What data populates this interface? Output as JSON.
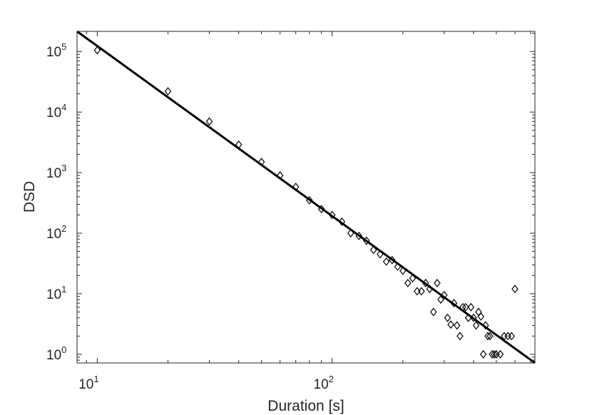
{
  "chart_data": {
    "type": "scatter",
    "title": "",
    "xlabel": "Duration [s]",
    "ylabel": "DSD",
    "xscale": "log",
    "yscale": "log",
    "xlim": [
      8.2,
      730
    ],
    "ylim": [
      0.72,
      215000
    ],
    "grid": false,
    "legend": "none",
    "x_ticks": [
      {
        "base": "10",
        "exp": "1",
        "value": 10
      },
      {
        "base": "10",
        "exp": "2",
        "value": 100
      }
    ],
    "y_ticks": [
      {
        "base": "10",
        "exp": "0",
        "value": 1
      },
      {
        "base": "10",
        "exp": "1",
        "value": 10
      },
      {
        "base": "10",
        "exp": "2",
        "value": 100
      },
      {
        "base": "10",
        "exp": "3",
        "value": 1000
      },
      {
        "base": "10",
        "exp": "4",
        "value": 10000
      },
      {
        "base": "10",
        "exp": "5",
        "value": 100000
      }
    ],
    "colors": {
      "marker": "#000000",
      "fit_line": "#000000",
      "axes": "#262626"
    },
    "series": [
      {
        "marker": "diamond",
        "points": [
          [
            10,
            105000
          ],
          [
            20,
            22000
          ],
          [
            30,
            7000
          ],
          [
            40,
            2900
          ],
          [
            50,
            1500
          ],
          [
            60,
            900
          ],
          [
            70,
            580
          ],
          [
            80,
            350
          ],
          [
            90,
            250
          ],
          [
            100,
            200
          ],
          [
            110,
            155
          ],
          [
            120,
            100
          ],
          [
            130,
            90
          ],
          [
            140,
            75
          ],
          [
            150,
            53
          ],
          [
            160,
            45
          ],
          [
            170,
            34
          ],
          [
            180,
            36
          ],
          [
            190,
            28
          ],
          [
            200,
            24
          ],
          [
            210,
            15
          ],
          [
            220,
            18
          ],
          [
            230,
            11
          ],
          [
            240,
            11
          ],
          [
            250,
            15
          ],
          [
            260,
            12
          ],
          [
            270,
            5
          ],
          [
            280,
            15
          ],
          [
            290,
            8
          ],
          [
            300,
            9.5
          ],
          [
            310,
            4
          ],
          [
            320,
            3.1
          ],
          [
            330,
            7
          ],
          [
            340,
            3
          ],
          [
            350,
            2
          ],
          [
            360,
            6
          ],
          [
            370,
            6
          ],
          [
            380,
            4
          ],
          [
            390,
            6
          ],
          [
            400,
            4
          ],
          [
            410,
            3
          ],
          [
            420,
            5
          ],
          [
            430,
            4.2
          ],
          [
            440,
            1
          ],
          [
            450,
            3
          ],
          [
            460,
            2
          ],
          [
            470,
            2
          ],
          [
            480,
            1
          ],
          [
            490,
            1
          ],
          [
            500,
            1
          ],
          [
            520,
            1
          ],
          [
            540,
            2
          ],
          [
            560,
            2
          ],
          [
            580,
            2
          ],
          [
            600,
            12
          ]
        ]
      },
      {
        "type": "line",
        "points": [
          [
            8.2,
            215000
          ],
          [
            730,
            0.72
          ]
        ]
      }
    ]
  }
}
